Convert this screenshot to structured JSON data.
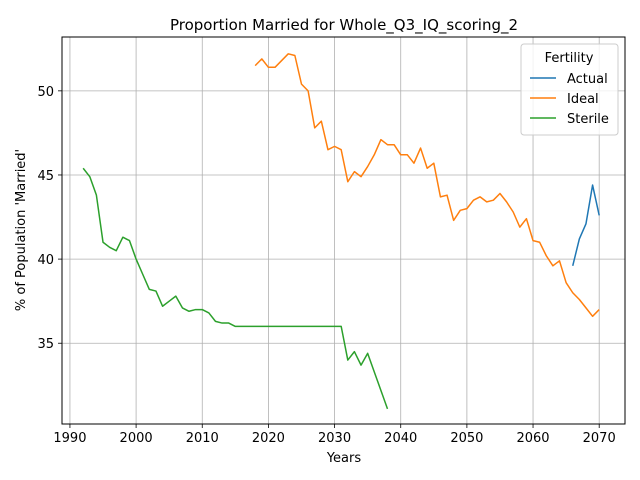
{
  "chart_data": {
    "type": "line",
    "title": "Proportion Married for Whole_Q3_IQ_scoring_2",
    "xlabel": "Years",
    "ylabel": "% of Population 'Married'",
    "xlim": [
      1988.8,
      2073.9
    ],
    "ylim": [
      30.2,
      53.2
    ],
    "xticks": [
      1990,
      2000,
      2010,
      2020,
      2030,
      2040,
      2050,
      2060,
      2070
    ],
    "yticks": [
      35,
      40,
      45,
      50
    ],
    "grid": true,
    "legend": {
      "title": "Fertility",
      "placement": "top-right"
    },
    "series": [
      {
        "name": "Actual",
        "color": "#1f77b4",
        "x": [
          2066,
          2067,
          2068,
          2069,
          2070
        ],
        "y": [
          39.6,
          41.2,
          42.1,
          44.4,
          42.6
        ]
      },
      {
        "name": "Ideal",
        "color": "#ff7f0e",
        "x": [
          2018,
          2019,
          2020,
          2021,
          2022,
          2023,
          2024,
          2025,
          2026,
          2027,
          2028,
          2029,
          2030,
          2031,
          2032,
          2033,
          2034,
          2035,
          2036,
          2037,
          2038,
          2039,
          2040,
          2041,
          2042,
          2043,
          2044,
          2045,
          2046,
          2047,
          2048,
          2049,
          2050,
          2051,
          2052,
          2053,
          2054,
          2055,
          2056,
          2057,
          2058,
          2059,
          2060,
          2061,
          2062,
          2063,
          2064,
          2065,
          2066,
          2067,
          2068,
          2069,
          2070
        ],
        "y": [
          51.5,
          51.9,
          51.4,
          51.4,
          51.8,
          52.2,
          52.1,
          50.4,
          50.0,
          47.8,
          48.2,
          46.5,
          46.7,
          46.5,
          44.6,
          45.2,
          44.9,
          45.5,
          46.2,
          47.1,
          46.8,
          46.8,
          46.2,
          46.2,
          45.7,
          46.6,
          45.4,
          45.7,
          43.7,
          43.8,
          42.3,
          42.9,
          43.0,
          43.5,
          43.7,
          43.4,
          43.5,
          43.9,
          43.4,
          42.8,
          41.9,
          42.4,
          41.1,
          41.0,
          40.2,
          39.6,
          39.9,
          38.6,
          38.0,
          37.6,
          37.1,
          36.6,
          37.0
        ]
      },
      {
        "name": "Sterile",
        "color": "#2ca02c",
        "x": [
          1992,
          1993,
          1994,
          1995,
          1996,
          1997,
          1998,
          1999,
          2000,
          2001,
          2002,
          2003,
          2004,
          2005,
          2006,
          2007,
          2008,
          2009,
          2010,
          2011,
          2012,
          2013,
          2014,
          2015,
          2016,
          2017,
          2018,
          2019,
          2020,
          2021,
          2022,
          2023,
          2024,
          2025,
          2026,
          2027,
          2028,
          2029,
          2030,
          2031,
          2032,
          2033,
          2034,
          2035,
          2036,
          2037,
          2038
        ],
        "y": [
          45.4,
          44.9,
          43.8,
          41.0,
          40.7,
          40.5,
          41.3,
          41.1,
          40.0,
          39.1,
          38.2,
          38.1,
          37.2,
          37.5,
          37.8,
          37.1,
          36.9,
          37.0,
          37.0,
          36.8,
          36.3,
          36.2,
          36.2,
          36.0,
          36.0,
          36.0,
          36.0,
          36.0,
          36.0,
          36.0,
          36.0,
          36.0,
          36.0,
          36.0,
          36.0,
          36.0,
          36.0,
          36.0,
          36.0,
          36.0,
          34.0,
          34.5,
          33.7,
          34.4,
          33.3,
          32.2,
          31.1
        ]
      }
    ]
  }
}
